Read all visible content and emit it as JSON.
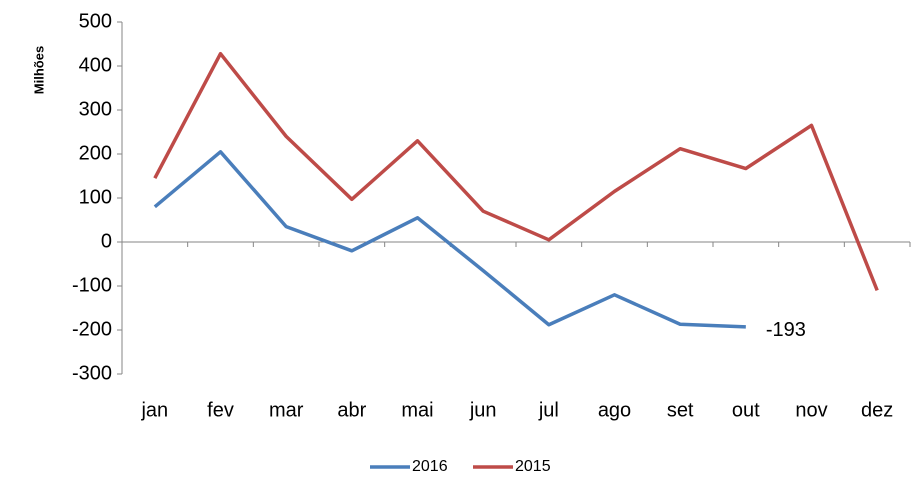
{
  "chart_data": {
    "type": "line",
    "y_label": "Milhões",
    "categories": [
      "jan",
      "fev",
      "mar",
      "abr",
      "mai",
      "jun",
      "jul",
      "ago",
      "set",
      "out",
      "nov",
      "dez"
    ],
    "series": [
      {
        "name": "2016",
        "color": "#4a7ebb",
        "values": [
          80,
          205,
          35,
          -20,
          55,
          -65,
          -188,
          -120,
          -187,
          -193,
          null,
          null
        ]
      },
      {
        "name": "2015",
        "color": "#be4b48",
        "values": [
          145,
          428,
          240,
          97,
          230,
          70,
          5,
          115,
          212,
          167,
          265,
          -110
        ]
      }
    ],
    "data_label": {
      "series": 0,
      "index": 9
    },
    "ylim": [
      -300,
      500
    ],
    "yticks": [
      -300,
      -200,
      -100,
      0,
      100,
      200,
      300,
      400,
      500
    ],
    "legend": "bottom"
  }
}
